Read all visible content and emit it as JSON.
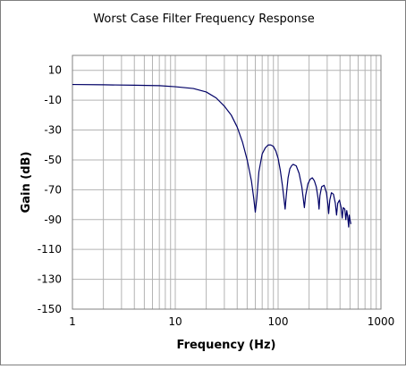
{
  "chart_data": {
    "type": "line",
    "title": "Worst Case Filter Frequency Response",
    "xlabel": "Frequency (Hz)",
    "ylabel": "Gain (dB)",
    "x_scale": "log",
    "xlim": [
      1,
      1000
    ],
    "ylim": [
      -150,
      20
    ],
    "x_ticks": [
      "1",
      "10",
      "100",
      "1000"
    ],
    "y_ticks": [
      "10",
      "-10",
      "-30",
      "-50",
      "-70",
      "-90",
      "-110",
      "-130",
      "-150"
    ],
    "grid": true,
    "legend": "none",
    "series": [
      {
        "color": "#000066",
        "points": [
          [
            1,
            0.5
          ],
          [
            2,
            0.3
          ],
          [
            4,
            0.0
          ],
          [
            7,
            -0.3
          ],
          [
            10,
            -1.0
          ],
          [
            15,
            -2.2
          ],
          [
            20,
            -4.5
          ],
          [
            25,
            -8.5
          ],
          [
            30,
            -14
          ],
          [
            35,
            -20
          ],
          [
            40,
            -28
          ],
          [
            45,
            -38
          ],
          [
            50,
            -50
          ],
          [
            55,
            -64
          ],
          [
            58,
            -76
          ],
          [
            60,
            -85
          ],
          [
            62,
            -76
          ],
          [
            65,
            -58
          ],
          [
            70,
            -46
          ],
          [
            75,
            -42
          ],
          [
            80,
            -40
          ],
          [
            85,
            -40
          ],
          [
            90,
            -41
          ],
          [
            95,
            -44
          ],
          [
            100,
            -49
          ],
          [
            105,
            -57
          ],
          [
            110,
            -67
          ],
          [
            114,
            -76
          ],
          [
            117,
            -83
          ],
          [
            120,
            -74
          ],
          [
            125,
            -62
          ],
          [
            130,
            -56
          ],
          [
            135,
            -54
          ],
          [
            140,
            -53
          ],
          [
            150,
            -54
          ],
          [
            160,
            -59
          ],
          [
            170,
            -68
          ],
          [
            175,
            -75
          ],
          [
            180,
            -82
          ],
          [
            185,
            -74
          ],
          [
            195,
            -66
          ],
          [
            205,
            -63
          ],
          [
            215,
            -62
          ],
          [
            225,
            -64
          ],
          [
            235,
            -68
          ],
          [
            245,
            -76
          ],
          [
            250,
            -83
          ],
          [
            255,
            -74
          ],
          [
            265,
            -68
          ],
          [
            280,
            -67
          ],
          [
            295,
            -72
          ],
          [
            305,
            -80
          ],
          [
            310,
            -86
          ],
          [
            318,
            -77
          ],
          [
            330,
            -72
          ],
          [
            345,
            -73
          ],
          [
            360,
            -79
          ],
          [
            370,
            -87
          ],
          [
            380,
            -79
          ],
          [
            395,
            -77
          ],
          [
            410,
            -82
          ],
          [
            420,
            -89
          ],
          [
            430,
            -82
          ],
          [
            445,
            -83
          ],
          [
            455,
            -90
          ],
          [
            465,
            -84
          ],
          [
            475,
            -88
          ],
          [
            485,
            -95
          ],
          [
            492,
            -87
          ],
          [
            500,
            -90
          ],
          [
            510,
            -93
          ]
        ]
      }
    ]
  }
}
